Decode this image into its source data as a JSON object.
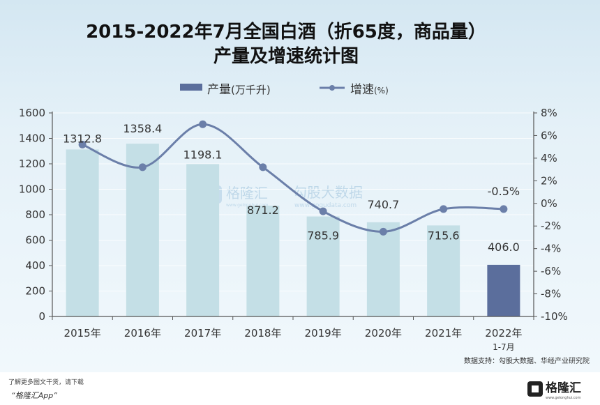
{
  "chart_data": {
    "type": "bar+line",
    "title_line1": "2015-2022年7月全国白酒（折65度，商品量）",
    "title_line2": "产量及增速统计图",
    "categories": [
      "2015年",
      "2016年",
      "2017年",
      "2018年",
      "2019年",
      "2020年",
      "2021年",
      "2022年"
    ],
    "category_sublabel": "1-7月",
    "series": [
      {
        "name": "产量(万千升)",
        "type": "bar",
        "axis": "left",
        "values": [
          1312.8,
          1358.4,
          1198.1,
          871.2,
          785.9,
          740.7,
          715.6,
          406.0
        ],
        "labels": [
          "1312.8",
          "1358.4",
          "1198.1",
          "871.2",
          "785.9",
          "740.7",
          "715.6",
          "406.0"
        ]
      },
      {
        "name": "增速(%)",
        "type": "line",
        "axis": "right",
        "values": [
          5.2,
          3.2,
          7.0,
          3.2,
          -0.7,
          -2.5,
          -0.5,
          -0.5
        ],
        "labels": [
          "",
          "",
          "",
          "",
          "",
          "",
          "",
          "-0.5%"
        ]
      }
    ],
    "left_axis": {
      "min": 0,
      "max": 1600,
      "step": 200,
      "ticks": [
        "0",
        "200",
        "400",
        "600",
        "800",
        "1000",
        "1200",
        "1400",
        "1600"
      ]
    },
    "right_axis": {
      "min": -10,
      "max": 8,
      "step": 2,
      "ticks": [
        "-10%",
        "-8%",
        "-6%",
        "-4%",
        "-2%",
        "0%",
        "2%",
        "4%",
        "6%",
        "8%"
      ]
    },
    "legend": [
      {
        "label": "产量",
        "suffix": "(万千升)"
      },
      {
        "label": "增速",
        "suffix": "(%)"
      }
    ],
    "legend_position": "top-center",
    "source": "数据支持：勾股大数据、华经产业研究院",
    "watermark": {
      "brand": "格隆汇",
      "brand_sub": "www.gelonghui.com",
      "text": "勾股大数据",
      "sub": "www.gogudata.com"
    }
  },
  "footer": {
    "promo_line1": "了解更多图文干货，请下载",
    "promo_line2": "“格隆汇App”",
    "logo_text": "格隆汇",
    "logo_sub": "www.gelonghui.com"
  },
  "colors": {
    "bar": "#c4dfe6",
    "bar_highlight": "#5b6e9c",
    "line": "#6b7fa9",
    "axis": "#555555"
  }
}
